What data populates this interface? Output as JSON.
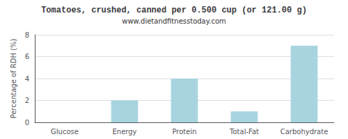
{
  "chart_data": {
    "type": "bar",
    "title": "Tomatoes, crushed, canned per 0.500 cup (or 121.00 g)",
    "subtitle": "www.dietandfitnesstoday.com",
    "categories": [
      "Glucose",
      "Energy",
      "Protein",
      "Total-Fat",
      "Carbohydrate"
    ],
    "values": [
      0,
      2,
      4,
      1,
      7
    ],
    "color": "#a8d4e0",
    "ylabel": "Percentage of RDH (%)",
    "ylim": [
      0,
      8
    ],
    "yticks": [
      0,
      2,
      4,
      6,
      8
    ],
    "grid": true
  }
}
